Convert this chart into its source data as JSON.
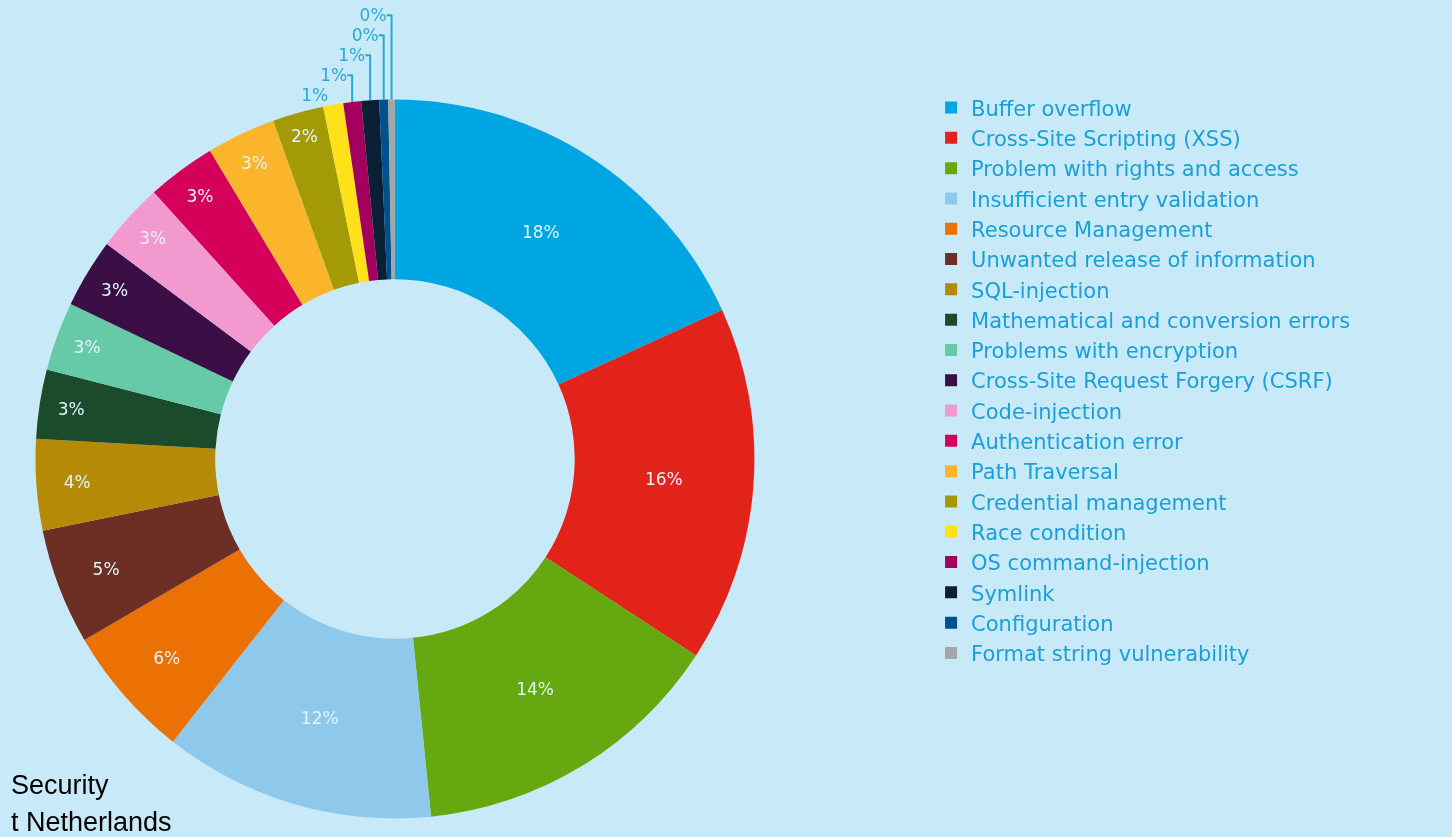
{
  "chart_data": {
    "type": "donut",
    "categories": [
      "Buffer overflow",
      "Cross-Site Scripting (XSS)",
      "Problem with rights and access",
      "Insufficient entry validation",
      "Resource Management",
      "Unwanted release of information",
      "SQL-injection",
      "Mathematical and conversion errors",
      "Problems with encryption",
      "Cross-Site Request Forgery (CSRF)",
      "Code-injection",
      "Authentication error",
      "Path Traversal",
      "Credential management",
      "Race condition",
      "OS command-injection",
      "Symlink",
      "Configuration",
      "Format string vulnerability"
    ],
    "values": [
      18.2,
      16.0,
      14.2,
      12.2,
      6.0,
      5.2,
      4.1,
      3.1,
      3.1,
      3.1,
      3.1,
      3.1,
      3.1,
      2.3,
      0.9,
      0.8,
      0.8,
      0.4,
      0.3
    ],
    "value_labels": [
      "18%",
      "16%",
      "14%",
      "12%",
      "6%",
      "5%",
      "4%",
      "3%",
      "3%",
      "3%",
      "3%",
      "3%",
      "3%",
      "2%",
      "1%",
      "1%",
      "1%",
      "0%",
      "0%"
    ],
    "colors": [
      "#00a6e2",
      "#e2231a",
      "#66a80f",
      "#8ec8ea",
      "#ec7105",
      "#6d2e23",
      "#b58a06",
      "#1c4b2c",
      "#66c9a8",
      "#3c0e46",
      "#f29ad0",
      "#d4005a",
      "#fbb52a",
      "#a39a06",
      "#ffe11a",
      "#a3005d",
      "#0b1f35",
      "#00518c",
      "#a4a7a8"
    ],
    "legend": "top right",
    "annotations": [
      "Security",
      "t Netherlands"
    ]
  }
}
